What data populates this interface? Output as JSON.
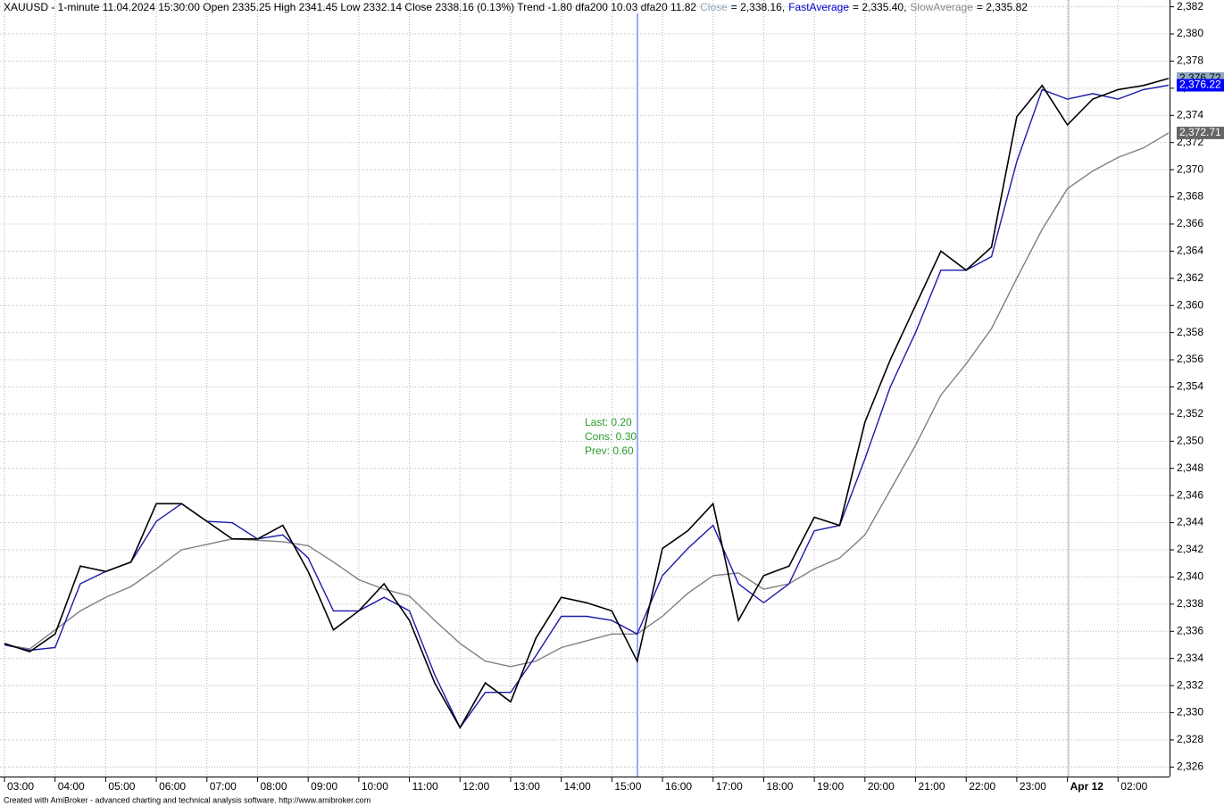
{
  "chart_data": {
    "type": "line",
    "title": "XAUUSD - 1-minute 11.04.2024 15:30:00 Open 2335.25 High 2341.45 Low 2332.14 Close 2338.16 (0.13%) Trend -1.80 dfa200 10.03 dfa20 11.82",
    "annotations": [
      "Last: 0.20",
      "Cons: 0.30",
      "Prev: 0.60"
    ],
    "footer": "Created with AmiBroker - advanced charting and technical analysis software. http://www.amibroker.com",
    "x": [
      "03:00",
      null,
      "04:00",
      null,
      "05:00",
      null,
      "06:00",
      null,
      "07:00",
      null,
      "08:00",
      null,
      "09:00",
      null,
      "10:00",
      null,
      "11:00",
      null,
      "12:00",
      null,
      "13:00",
      null,
      "14:00",
      null,
      "15:00",
      null,
      "16:00",
      null,
      "17:00",
      null,
      "18:00",
      null,
      "19:00",
      null,
      "20:00",
      null,
      "21:00",
      null,
      "22:00",
      null,
      "23:00",
      null,
      "Apr 12",
      null,
      "02:00",
      null,
      null
    ],
    "series": [
      {
        "name": "Close",
        "readout": "= 2,338.16,",
        "legend_color": "#8fa8c2",
        "color": "#000000",
        "badge_color": "#8fa8c2",
        "last_label": "2,376.72",
        "values": [
          2335.1,
          2334.5,
          2335.8,
          2340.8,
          2340.4,
          2341.1,
          2345.4,
          2345.4,
          2344.1,
          2342.8,
          2342.8,
          2343.8,
          2340.4,
          2336.1,
          2337.5,
          2339.5,
          2336.8,
          2332.2,
          2328.9,
          2332.2,
          2330.8,
          2335.5,
          2338.5,
          2338.1,
          2337.5,
          2333.8,
          2342.1,
          2343.4,
          2345.4,
          2336.8,
          2340.1,
          2340.8,
          2344.4,
          2343.8,
          2351.4,
          2356.0,
          2360.0,
          2364.0,
          2362.6,
          2364.3,
          2373.9,
          2376.2,
          2373.3,
          2375.2,
          2375.9,
          2376.2,
          2376.72
        ]
      },
      {
        "name": "FastAverage",
        "readout": "= 2,335.40,",
        "legend_color": "#0000cc",
        "color": "#1a1aa8",
        "badge_color": "#0000ff",
        "last_label": "2,376.22",
        "values": [
          2335.0,
          2334.6,
          2334.8,
          2339.5,
          2340.4,
          2341.1,
          2344.1,
          2345.4,
          2344.1,
          2344.0,
          2342.8,
          2343.1,
          2341.4,
          2337.5,
          2337.5,
          2338.5,
          2337.5,
          2332.8,
          2328.9,
          2331.5,
          2331.5,
          2334.2,
          2337.1,
          2337.1,
          2336.8,
          2335.8,
          2340.1,
          2342.1,
          2343.8,
          2339.5,
          2338.1,
          2339.5,
          2343.4,
          2343.8,
          2348.7,
          2354.0,
          2358.0,
          2362.6,
          2362.6,
          2363.6,
          2370.6,
          2375.9,
          2375.2,
          2375.6,
          2375.2,
          2375.9,
          2376.22
        ]
      },
      {
        "name": "SlowAverage",
        "readout": "= 2,335.82",
        "legend_color": "#8a8a8a",
        "color": "#808080",
        "badge_color": "#666666",
        "last_label": "2,372.71",
        "values": [
          2335.0,
          2334.7,
          2336.1,
          2337.5,
          2338.5,
          2339.3,
          2340.6,
          2342.0,
          2342.4,
          2342.8,
          2342.7,
          2342.6,
          2342.3,
          2341.1,
          2339.8,
          2339.1,
          2338.6,
          2336.8,
          2335.1,
          2333.8,
          2333.4,
          2333.8,
          2334.8,
          2335.3,
          2335.8,
          2335.8,
          2337.1,
          2338.8,
          2340.1,
          2340.3,
          2339.1,
          2339.5,
          2340.6,
          2341.4,
          2343.1,
          2346.4,
          2349.7,
          2353.4,
          2355.7,
          2358.3,
          2362.0,
          2365.6,
          2368.6,
          2369.9,
          2370.9,
          2371.6,
          2372.71
        ]
      }
    ],
    "ylim": [
      2325.3,
      2382.5
    ],
    "yticks": [
      {
        "value": 2326,
        "label": "2,326"
      },
      {
        "value": 2328,
        "label": "2,328"
      },
      {
        "value": 2330,
        "label": "2,330"
      },
      {
        "value": 2332,
        "label": "2,332"
      },
      {
        "value": 2334,
        "label": "2,334"
      },
      {
        "value": 2336,
        "label": "2,336"
      },
      {
        "value": 2338,
        "label": "2,338"
      },
      {
        "value": 2340,
        "label": "2,340"
      },
      {
        "value": 2342,
        "label": "2,342"
      },
      {
        "value": 2344,
        "label": "2,344"
      },
      {
        "value": 2346,
        "label": "2,346"
      },
      {
        "value": 2348,
        "label": "2,348"
      },
      {
        "value": 2350,
        "label": "2,350"
      },
      {
        "value": 2352,
        "label": "2,352"
      },
      {
        "value": 2354,
        "label": "2,354"
      },
      {
        "value": 2356,
        "label": "2,356"
      },
      {
        "value": 2358,
        "label": "2,358"
      },
      {
        "value": 2360,
        "label": "2,360"
      },
      {
        "value": 2362,
        "label": "2,362"
      },
      {
        "value": 2364,
        "label": "2,364"
      },
      {
        "value": 2366,
        "label": "2,366"
      },
      {
        "value": 2368,
        "label": "2,368"
      },
      {
        "value": 2370,
        "label": "2,370"
      },
      {
        "value": 2372,
        "label": "2,372"
      },
      {
        "value": 2374,
        "label": "2,374"
      },
      {
        "value": 2376,
        "label": "2,376"
      },
      {
        "value": 2378,
        "label": "2,378"
      },
      {
        "value": 2380,
        "label": "2,380"
      },
      {
        "value": 2382,
        "label": "2,382"
      }
    ],
    "grid": true
  }
}
